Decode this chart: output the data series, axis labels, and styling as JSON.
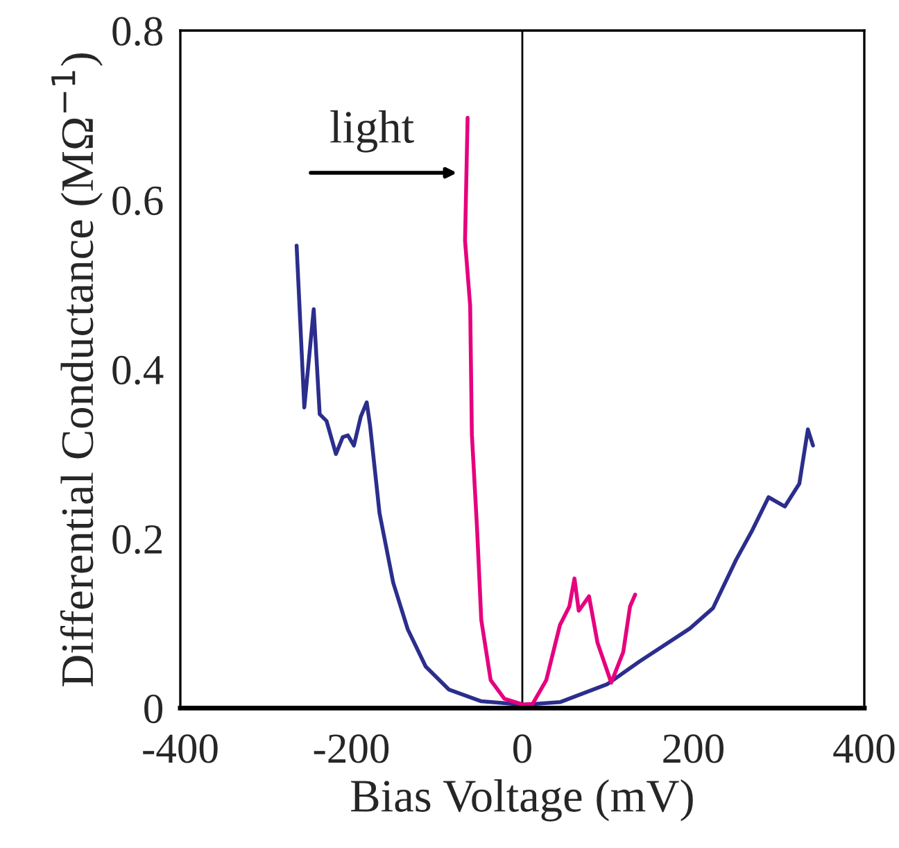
{
  "chart_data": {
    "type": "line",
    "xlabel": "Bias Voltage (mV)",
    "ylabel": "Differential Conductance (MΩ$^{−1}$)",
    "xlim": [
      -400,
      400
    ],
    "xticks": [
      -400,
      -200,
      0,
      200,
      400
    ],
    "ylim": [
      0,
      0.8
    ],
    "yticks": [
      0,
      0.2,
      0.4,
      0.6,
      0.8
    ],
    "grid": false,
    "legend": false,
    "line_style": "solid",
    "marker": "none",
    "series": [
      {
        "color": "#2b2e8c",
        "x": [
          -264,
          -255,
          -244,
          -237,
          -229,
          -218,
          -210,
          -204,
          -197,
          -189,
          -182,
          -178,
          -167,
          -151,
          -134,
          -113,
          -86,
          -48,
          1,
          44,
          99,
          137,
          196,
          223,
          250,
          269,
          288,
          307,
          324,
          334,
          340
        ],
        "values": [
          0.546,
          0.355,
          0.471,
          0.347,
          0.339,
          0.3,
          0.32,
          0.322,
          0.31,
          0.344,
          0.361,
          0.333,
          0.23,
          0.148,
          0.093,
          0.049,
          0.022,
          0.008,
          0.004,
          0.007,
          0.028,
          0.055,
          0.094,
          0.118,
          0.175,
          0.21,
          0.249,
          0.238,
          0.265,
          0.329,
          0.31
        ]
      },
      {
        "color": "#e6007e",
        "x": [
          -64,
          -67,
          -61,
          -59,
          -53,
          -48,
          -37,
          -21,
          1,
          12,
          28,
          44,
          55,
          61,
          66,
          78,
          88,
          104,
          118,
          126,
          132
        ],
        "values": [
          0.697,
          0.552,
          0.475,
          0.323,
          0.213,
          0.104,
          0.033,
          0.011,
          0.004,
          0.005,
          0.033,
          0.098,
          0.12,
          0.153,
          0.115,
          0.132,
          0.077,
          0.03,
          0.066,
          0.12,
          0.134
        ]
      }
    ],
    "ref_lines": [
      {
        "axis": "x",
        "value": 0,
        "color": "#000000"
      }
    ],
    "annotations": [
      "light"
    ]
  }
}
